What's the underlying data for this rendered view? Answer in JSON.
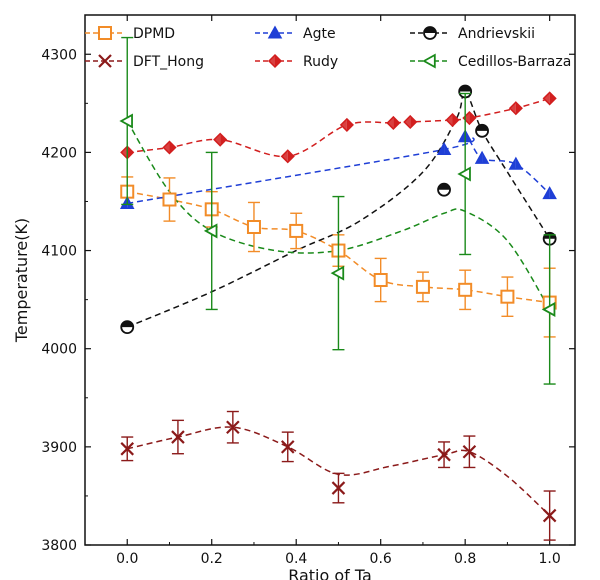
{
  "chart_data": {
    "type": "scatter",
    "title": "",
    "xlabel": "Ratio of Ta",
    "ylabel": "Temperature(K)",
    "xlim": [
      -0.1,
      1.06
    ],
    "ylim": [
      3800,
      4340
    ],
    "xticks": [
      0.0,
      0.2,
      0.4,
      0.6,
      0.8,
      1.0
    ],
    "xtick_labels": [
      "0.0",
      "0.2",
      "0.4",
      "0.6",
      "0.8",
      "1.0"
    ],
    "yticks": [
      3800,
      3900,
      4000,
      4100,
      4200,
      4300
    ],
    "ytick_labels": [
      "3800",
      "3900",
      "4000",
      "4100",
      "4200",
      "4300"
    ],
    "grid": false,
    "legend_position": "top",
    "series": [
      {
        "name": "DPMD",
        "color": "#f28c28",
        "marker": "square-open",
        "points": [
          {
            "x": 0.0,
            "y": 4160,
            "err": 15
          },
          {
            "x": 0.1,
            "y": 4152,
            "err": 22
          },
          {
            "x": 0.2,
            "y": 4142,
            "err": 18
          },
          {
            "x": 0.3,
            "y": 4124,
            "err": 25
          },
          {
            "x": 0.4,
            "y": 4120,
            "err": 18
          },
          {
            "x": 0.5,
            "y": 4100,
            "err": 16
          },
          {
            "x": 0.6,
            "y": 4070,
            "err": 22
          },
          {
            "x": 0.7,
            "y": 4063,
            "err": 15
          },
          {
            "x": 0.8,
            "y": 4060,
            "err": 20
          },
          {
            "x": 0.9,
            "y": 4053,
            "err": 20
          },
          {
            "x": 1.0,
            "y": 4047,
            "err": 35
          }
        ]
      },
      {
        "name": "DFT_Hong",
        "color": "#8b1a1a",
        "marker": "x",
        "points": [
          {
            "x": 0.0,
            "y": 3898,
            "err": 12
          },
          {
            "x": 0.12,
            "y": 3910,
            "err": 17
          },
          {
            "x": 0.25,
            "y": 3920,
            "err": 16
          },
          {
            "x": 0.38,
            "y": 3900,
            "err": 15
          },
          {
            "x": 0.5,
            "y": 3858,
            "err": 15
          },
          {
            "x": 0.75,
            "y": 3892,
            "err": 13
          },
          {
            "x": 0.81,
            "y": 3895,
            "err": 16
          },
          {
            "x": 1.0,
            "y": 3830,
            "err": 25
          }
        ]
      },
      {
        "name": "Agte",
        "color": "#1f3fd6",
        "marker": "triangle-up",
        "points": [
          {
            "x": 0.0,
            "y": 4148
          },
          {
            "x": 0.75,
            "y": 4203
          },
          {
            "x": 0.8,
            "y": 4216
          },
          {
            "x": 0.84,
            "y": 4194
          },
          {
            "x": 0.92,
            "y": 4188
          },
          {
            "x": 1.0,
            "y": 4158
          }
        ]
      },
      {
        "name": "Rudy",
        "color": "#d21f1f",
        "marker": "diamond-half",
        "points": [
          {
            "x": 0.0,
            "y": 4200
          },
          {
            "x": 0.1,
            "y": 4205
          },
          {
            "x": 0.22,
            "y": 4213
          },
          {
            "x": 0.38,
            "y": 4196
          },
          {
            "x": 0.52,
            "y": 4228
          },
          {
            "x": 0.63,
            "y": 4230
          },
          {
            "x": 0.67,
            "y": 4231
          },
          {
            "x": 0.77,
            "y": 4233
          },
          {
            "x": 0.81,
            "y": 4235
          },
          {
            "x": 0.92,
            "y": 4245
          },
          {
            "x": 1.0,
            "y": 4255
          }
        ]
      },
      {
        "name": "Andrievskii",
        "color": "#111111",
        "marker": "circle-half",
        "points": [
          {
            "x": 0.0,
            "y": 4022
          },
          {
            "x": 0.75,
            "y": 4162
          },
          {
            "x": 0.8,
            "y": 4262
          },
          {
            "x": 0.84,
            "y": 4222
          },
          {
            "x": 1.0,
            "y": 4112
          }
        ]
      },
      {
        "name": "Cedillos-Barraza",
        "color": "#1a8a1a",
        "marker": "triangle-left",
        "points": [
          {
            "x": 0.0,
            "y": 4232,
            "err": 85
          },
          {
            "x": 0.2,
            "y": 4120,
            "err": 80
          },
          {
            "x": 0.5,
            "y": 4077,
            "err": 78
          },
          {
            "x": 0.8,
            "y": 4178,
            "err": 82
          },
          {
            "x": 1.0,
            "y": 4040,
            "err": 76
          }
        ]
      }
    ],
    "fit_curves": [
      {
        "series": "DPMD",
        "color": "#f28c28",
        "points": [
          [
            0.0,
            4160
          ],
          [
            0.1,
            4152
          ],
          [
            0.2,
            4142
          ],
          [
            0.3,
            4124
          ],
          [
            0.4,
            4120
          ],
          [
            0.5,
            4100
          ],
          [
            0.6,
            4070
          ],
          [
            0.7,
            4063
          ],
          [
            0.8,
            4060
          ],
          [
            0.9,
            4053
          ],
          [
            1.0,
            4047
          ]
        ]
      },
      {
        "series": "DFT_Hong",
        "color": "#8b1a1a",
        "points": [
          [
            0.0,
            3898
          ],
          [
            0.12,
            3910
          ],
          [
            0.25,
            3920
          ],
          [
            0.38,
            3900
          ],
          [
            0.5,
            3872
          ],
          [
            0.62,
            3880
          ],
          [
            0.75,
            3892
          ],
          [
            0.81,
            3895
          ],
          [
            0.9,
            3870
          ],
          [
            1.0,
            3830
          ]
        ]
      },
      {
        "series": "Agte",
        "color": "#1f3fd6",
        "points": [
          [
            0.0,
            4148
          ],
          [
            0.75,
            4203
          ],
          [
            0.8,
            4216
          ],
          [
            0.84,
            4194
          ],
          [
            0.92,
            4188
          ],
          [
            1.0,
            4158
          ]
        ]
      },
      {
        "series": "Rudy",
        "color": "#d21f1f",
        "points": [
          [
            0.0,
            4200
          ],
          [
            0.1,
            4205
          ],
          [
            0.22,
            4213
          ],
          [
            0.38,
            4196
          ],
          [
            0.52,
            4228
          ],
          [
            0.63,
            4230
          ],
          [
            0.67,
            4231
          ],
          [
            0.77,
            4233
          ],
          [
            0.81,
            4235
          ],
          [
            0.92,
            4245
          ],
          [
            1.0,
            4255
          ]
        ]
      },
      {
        "series": "Andrievskii",
        "color": "#111111",
        "points": [
          [
            0.0,
            4022
          ],
          [
            0.2,
            4058
          ],
          [
            0.4,
            4100
          ],
          [
            0.55,
            4130
          ],
          [
            0.7,
            4180
          ],
          [
            0.78,
            4235
          ],
          [
            0.8,
            4262
          ],
          [
            0.84,
            4222
          ],
          [
            0.9,
            4180
          ],
          [
            1.0,
            4112
          ]
        ]
      },
      {
        "series": "Cedillos-Barraza",
        "color": "#1a8a1a",
        "points": [
          [
            0.0,
            4232
          ],
          [
            0.1,
            4160
          ],
          [
            0.2,
            4120
          ],
          [
            0.35,
            4100
          ],
          [
            0.5,
            4100
          ],
          [
            0.65,
            4120
          ],
          [
            0.75,
            4138
          ],
          [
            0.8,
            4140
          ],
          [
            0.9,
            4110
          ],
          [
            1.0,
            4040
          ]
        ]
      }
    ]
  }
}
